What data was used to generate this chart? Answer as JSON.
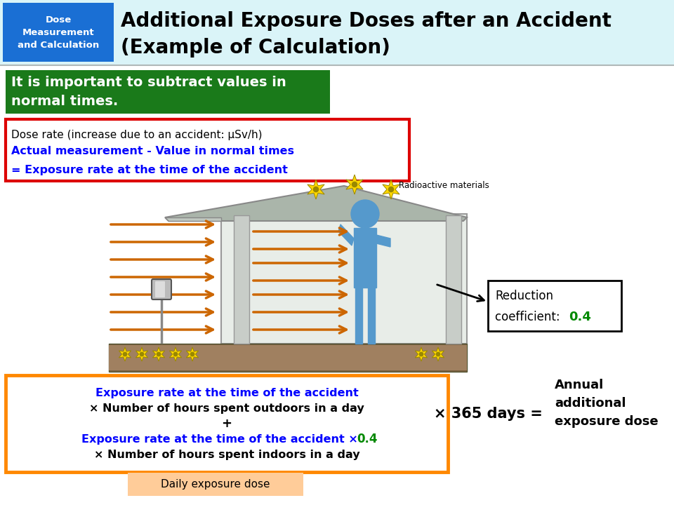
{
  "title_box_color": "#1a6fd4",
  "title_box_text": "Dose\nMeasurement\nand Calculation",
  "header_bg": "#daf4f8",
  "green_box_text": "It is important to subtract values in\nnormal times.",
  "green_box_color": "#1a7a1a",
  "red_box_line1": "Dose rate (increase due to an accident: μSv/h)",
  "red_box_line2": "Actual measurement - Value in normal times",
  "red_box_line3": "= Exposure rate at the time of the accident",
  "red_border_color": "#dd0000",
  "arrow_color": "#cc6600",
  "star_color": "#FFD700",
  "person_color": "#5599cc",
  "orange_box_border": "#FF8800",
  "orange_box_line1": "Exposure rate at the time of the accident",
  "orange_box_line2": "× Number of hours spent outdoors in a day",
  "orange_box_line3": "+",
  "orange_box_line4a": "Exposure rate at the time of the accident ×",
  "orange_box_line4b": "0.4",
  "orange_box_line5": "× Number of hours spent indoors in a day",
  "daily_label": "Daily exposure dose",
  "daily_box_color": "#FFCC99",
  "times_365": "× 365 days =",
  "annual_label": "Annual\nadditional\nexposure dose",
  "reduction_line1": "Reduction",
  "reduction_line2": "coefficient: ",
  "reduction_value": "0.4",
  "radioactive_label": "Radioactive materials",
  "blue_color": "#0000FF",
  "green_color": "#008800",
  "black_color": "#000000",
  "white_color": "#FFFFFF",
  "house_roof_color": "#aab5aa",
  "house_wall_color": "#e8ede8",
  "ground_dark": "#7a6040",
  "ground_light": "#a08060",
  "col_color": "#c8cdc8",
  "device_color": "#aaaaaa"
}
